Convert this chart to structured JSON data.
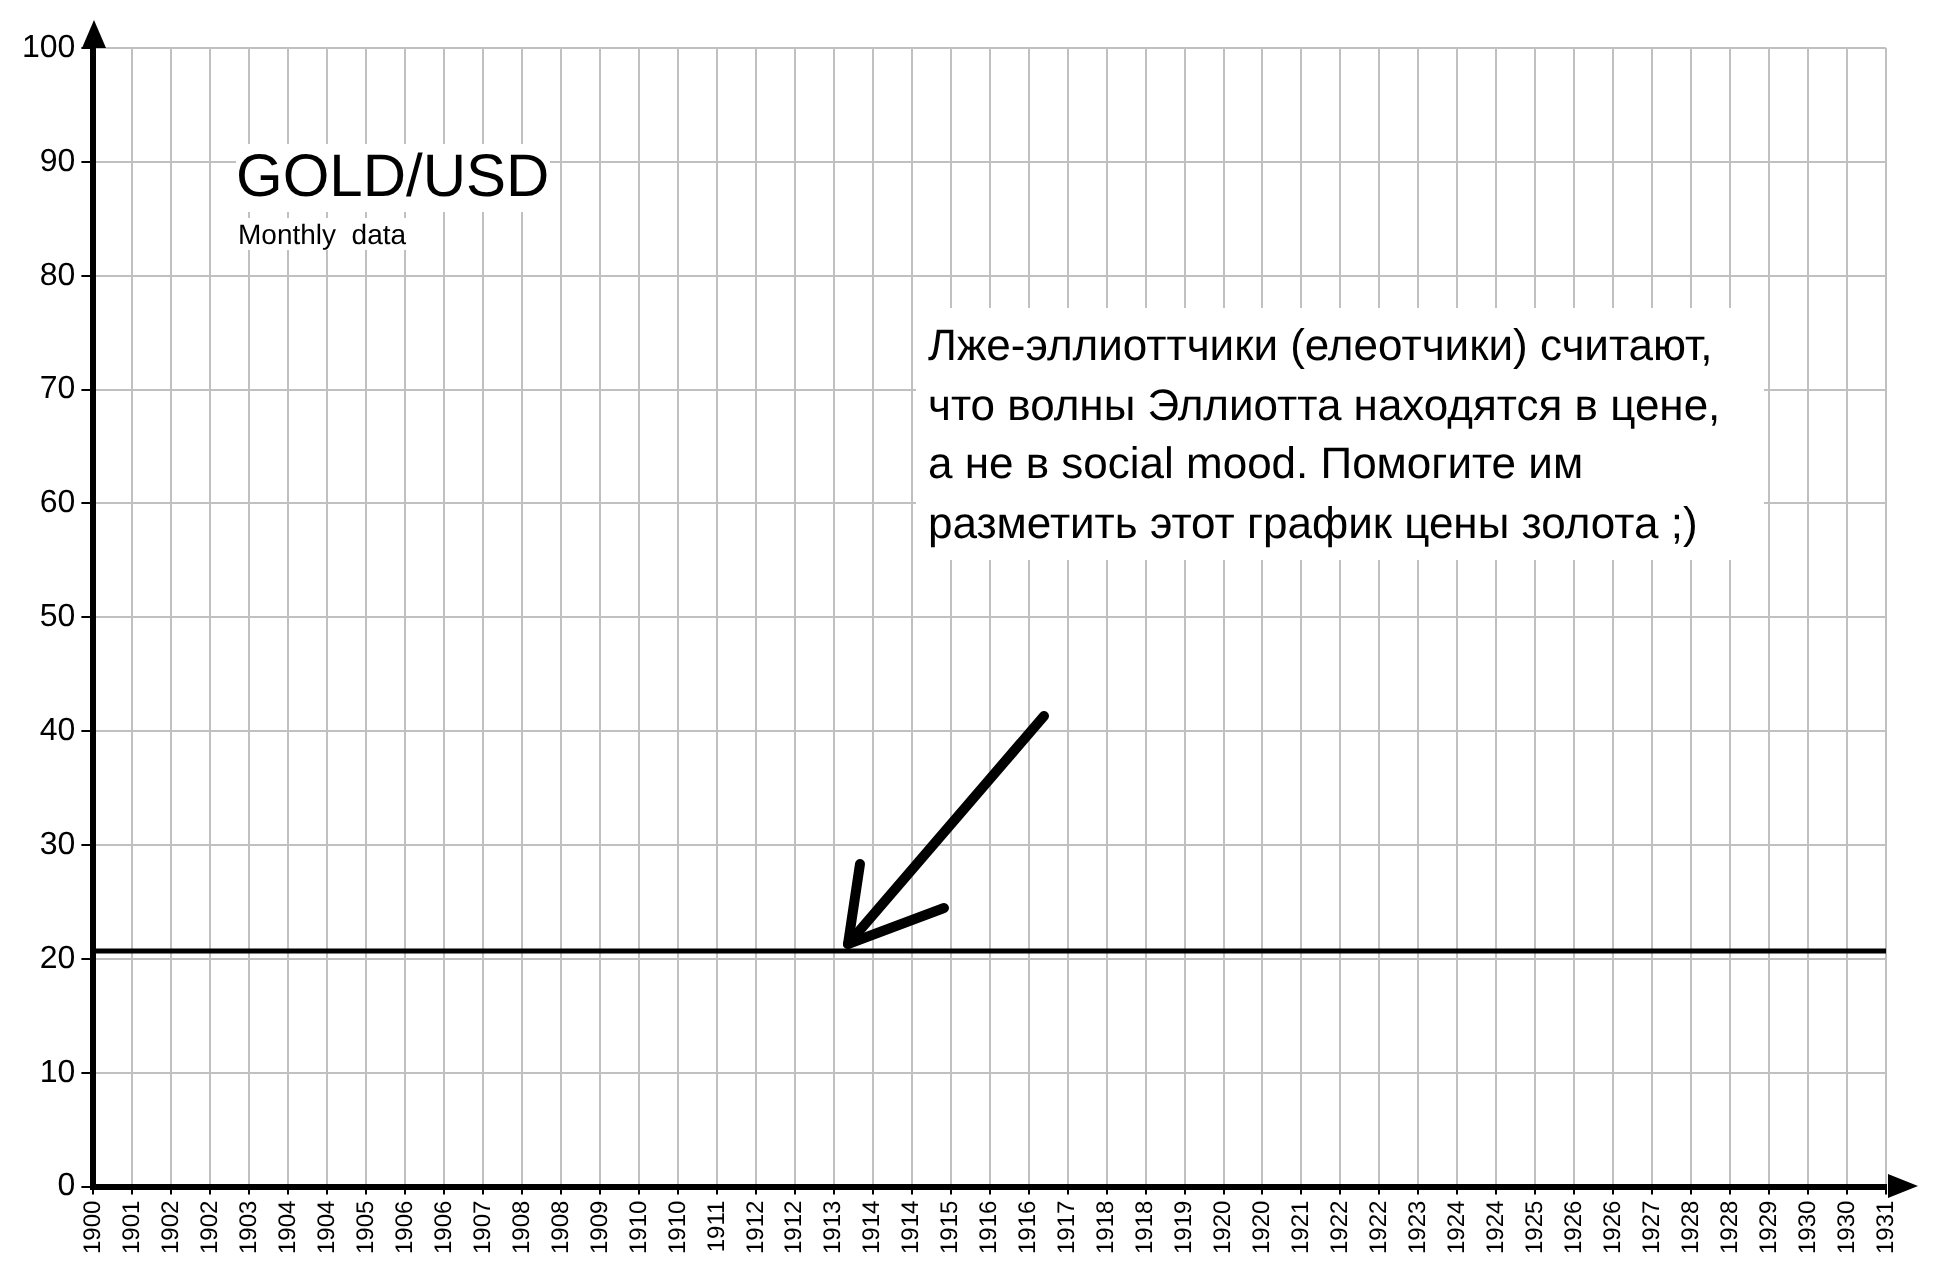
{
  "chart_data": {
    "type": "line",
    "title": "GOLD/USD",
    "subtitle": "Monthly  data",
    "categories": [
      "1900",
      "1901",
      "1902",
      "1902",
      "1903",
      "1904",
      "1904",
      "1905",
      "1906",
      "1906",
      "1907",
      "1908",
      "1908",
      "1909",
      "1910",
      "1910",
      "1911",
      "1912",
      "1912",
      "1913",
      "1914",
      "1914",
      "1915",
      "1916",
      "1916",
      "1917",
      "1918",
      "1918",
      "1919",
      "1920",
      "1920",
      "1921",
      "1922",
      "1922",
      "1923",
      "1924",
      "1924",
      "1925",
      "1926",
      "1926",
      "1927",
      "1928",
      "1928",
      "1929",
      "1930",
      "1930",
      "1931"
    ],
    "series": [
      {
        "color": "#000000",
        "values": [
          20.7,
          20.7,
          20.7,
          20.7,
          20.7,
          20.7,
          20.7,
          20.7,
          20.7,
          20.7,
          20.7,
          20.7,
          20.7,
          20.7,
          20.7,
          20.7,
          20.7,
          20.7,
          20.7,
          20.7,
          20.7,
          20.7,
          20.7,
          20.7,
          20.7,
          20.7,
          20.7,
          20.7,
          20.7,
          20.7,
          20.7,
          20.7,
          20.7,
          20.7,
          20.7,
          20.7,
          20.7,
          20.7,
          20.7,
          20.7,
          20.7,
          20.7,
          20.7,
          20.7,
          20.7,
          20.7,
          20.7
        ]
      }
    ],
    "ylim": [
      0,
      100
    ],
    "yticks": [
      0,
      10,
      20,
      30,
      40,
      50,
      60,
      70,
      80,
      90,
      100
    ],
    "grid": true,
    "legend": false,
    "marker": "none",
    "line_style": "solid",
    "annotations": [
      "Лже-эллиоттчики (елеотчики) считают, что волны Эллиотта находятся в цене, а не в social mood. Помогите им разметить этот график цены золота  ;)"
    ]
  }
}
